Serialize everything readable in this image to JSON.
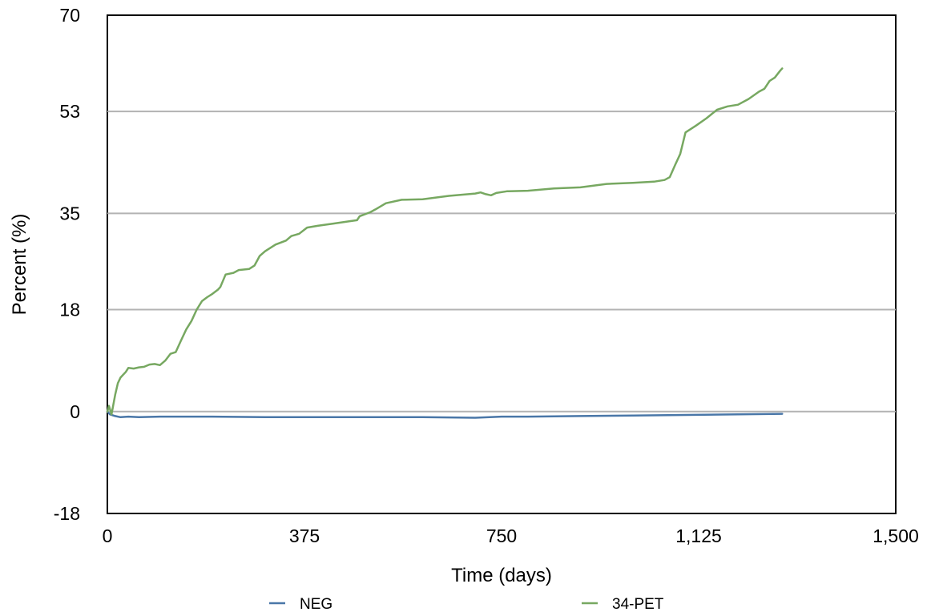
{
  "chart_data": {
    "type": "line",
    "title": "",
    "xlabel": "Time (days)",
    "ylabel": "Percent (%)",
    "xlim": [
      0,
      1500
    ],
    "ylim": [
      -18,
      70
    ],
    "x_ticks": [
      0,
      375,
      750,
      1125,
      1500
    ],
    "x_tick_labels": [
      "0",
      "375",
      "750",
      "1,125",
      "1,500"
    ],
    "y_ticks": [
      -18,
      0,
      18,
      35,
      53,
      70
    ],
    "y_tick_labels": [
      "-18",
      "0",
      "18",
      "35",
      "53",
      "70"
    ],
    "horizontal_grid": true,
    "vertical_grid": false,
    "legend_position": "bottom",
    "series": [
      {
        "name": "NEG",
        "color": "#4a77a8",
        "points": [
          [
            0,
            0
          ],
          [
            5,
            -0.5
          ],
          [
            15,
            -0.8
          ],
          [
            25,
            -1.0
          ],
          [
            40,
            -0.9
          ],
          [
            60,
            -1.0
          ],
          [
            100,
            -0.9
          ],
          [
            200,
            -0.9
          ],
          [
            300,
            -1.0
          ],
          [
            400,
            -1.0
          ],
          [
            500,
            -1.0
          ],
          [
            600,
            -1.0
          ],
          [
            700,
            -1.1
          ],
          [
            750,
            -0.9
          ],
          [
            800,
            -0.9
          ],
          [
            900,
            -0.8
          ],
          [
            1000,
            -0.7
          ],
          [
            1100,
            -0.6
          ],
          [
            1200,
            -0.5
          ],
          [
            1284,
            -0.4
          ]
        ]
      },
      {
        "name": "34-PET",
        "color": "#77a861",
        "points": [
          [
            0,
            0
          ],
          [
            3,
            1
          ],
          [
            8,
            -0.5
          ],
          [
            15,
            3
          ],
          [
            20,
            5
          ],
          [
            25,
            6
          ],
          [
            30,
            6.5
          ],
          [
            35,
            7
          ],
          [
            40,
            7.7
          ],
          [
            50,
            7.6
          ],
          [
            60,
            7.8
          ],
          [
            70,
            7.9
          ],
          [
            80,
            8.3
          ],
          [
            90,
            8.4
          ],
          [
            100,
            8.2
          ],
          [
            110,
            9
          ],
          [
            120,
            10.2
          ],
          [
            130,
            10.5
          ],
          [
            140,
            12.5
          ],
          [
            150,
            14.5
          ],
          [
            160,
            16
          ],
          [
            170,
            18
          ],
          [
            180,
            19.5
          ],
          [
            190,
            20.2
          ],
          [
            200,
            20.8
          ],
          [
            210,
            21.5
          ],
          [
            215,
            22
          ],
          [
            225,
            24.2
          ],
          [
            240,
            24.5
          ],
          [
            250,
            25
          ],
          [
            270,
            25.2
          ],
          [
            280,
            25.8
          ],
          [
            290,
            27.5
          ],
          [
            300,
            28.3
          ],
          [
            320,
            29.5
          ],
          [
            340,
            30.2
          ],
          [
            350,
            31
          ],
          [
            365,
            31.4
          ],
          [
            380,
            32.5
          ],
          [
            400,
            32.8
          ],
          [
            430,
            33.2
          ],
          [
            460,
            33.6
          ],
          [
            475,
            33.8
          ],
          [
            480,
            34.5
          ],
          [
            500,
            35.2
          ],
          [
            510,
            35.7
          ],
          [
            530,
            36.8
          ],
          [
            560,
            37.4
          ],
          [
            600,
            37.5
          ],
          [
            650,
            38.1
          ],
          [
            700,
            38.5
          ],
          [
            710,
            38.7
          ],
          [
            720,
            38.4
          ],
          [
            730,
            38.2
          ],
          [
            740,
            38.6
          ],
          [
            760,
            38.9
          ],
          [
            800,
            39
          ],
          [
            850,
            39.4
          ],
          [
            900,
            39.6
          ],
          [
            950,
            40.2
          ],
          [
            1000,
            40.4
          ],
          [
            1040,
            40.6
          ],
          [
            1060,
            40.9
          ],
          [
            1070,
            41.4
          ],
          [
            1080,
            43.5
          ],
          [
            1090,
            45.5
          ],
          [
            1100,
            49.3
          ],
          [
            1120,
            50.5
          ],
          [
            1140,
            51.8
          ],
          [
            1160,
            53.3
          ],
          [
            1180,
            53.9
          ],
          [
            1200,
            54.2
          ],
          [
            1220,
            55.2
          ],
          [
            1240,
            56.5
          ],
          [
            1250,
            57
          ],
          [
            1260,
            58.4
          ],
          [
            1270,
            59
          ],
          [
            1280,
            60.2
          ],
          [
            1284,
            60.6
          ]
        ]
      }
    ]
  }
}
